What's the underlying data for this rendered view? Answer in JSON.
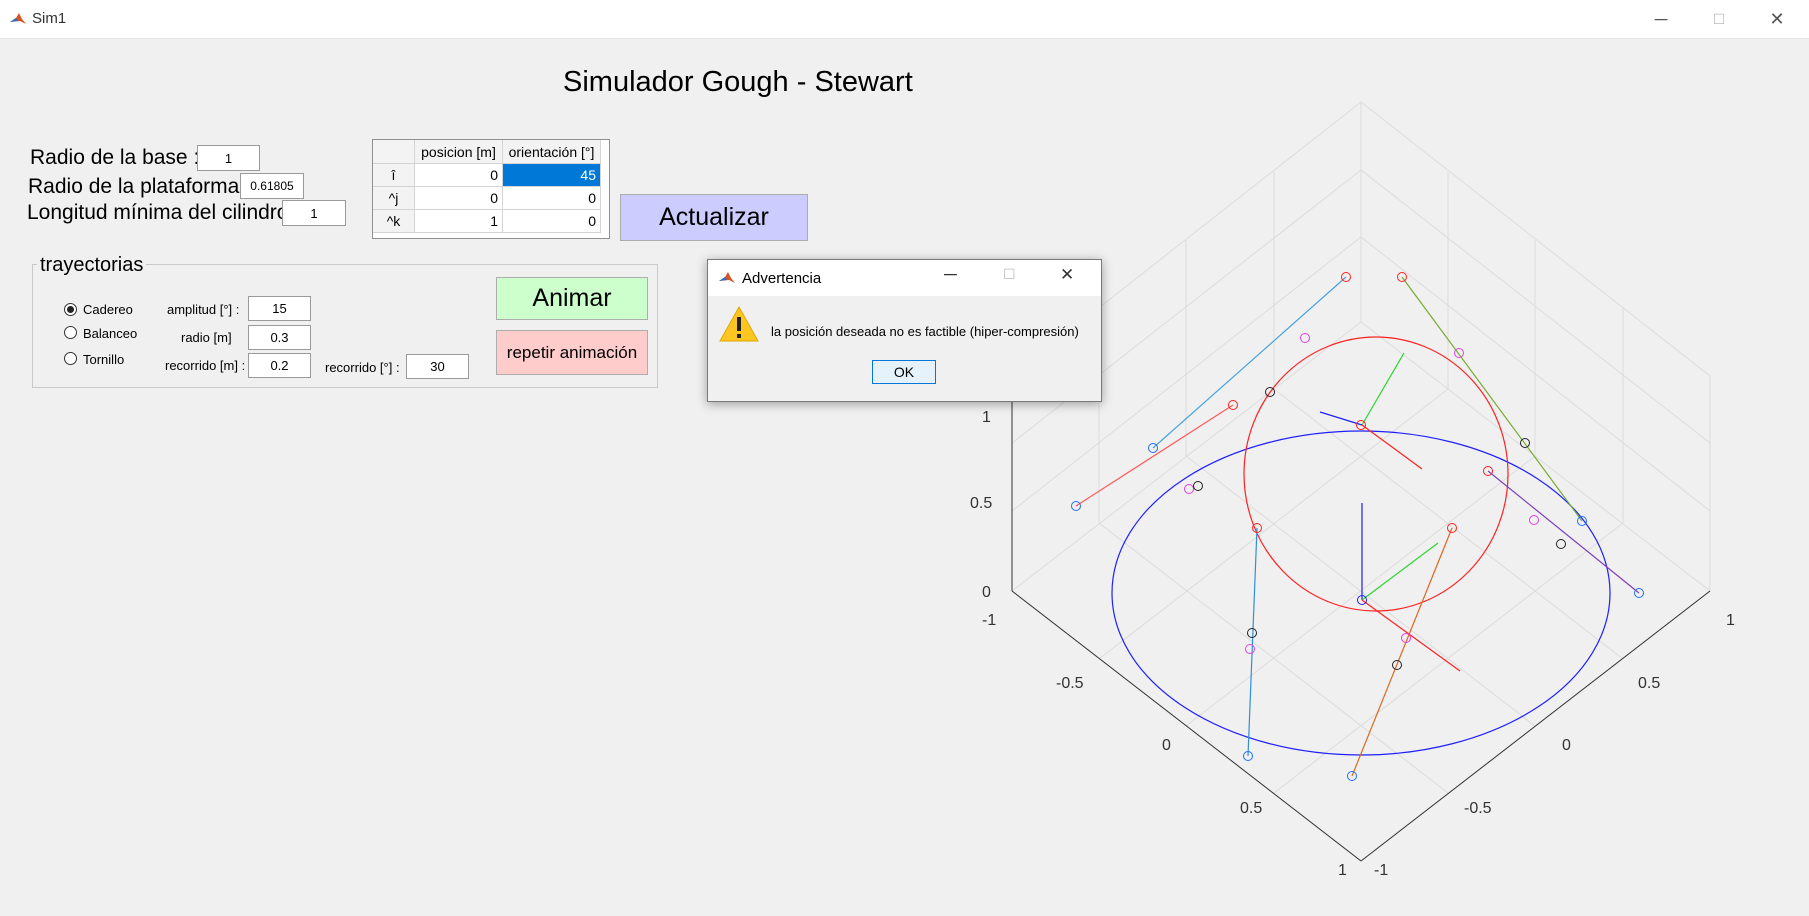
{
  "window": {
    "title": "Sim1",
    "minimize": "─",
    "maximize": "☐",
    "close": "✕"
  },
  "main_title": "Simulador Gough - Stewart",
  "params": {
    "radio_base_label": "Radio de la base :",
    "radio_base_value": "1",
    "radio_plataforma_label": "Radio de la plataforma :",
    "radio_plataforma_value": "0.61805",
    "longitud_label": "Longitud mínima del cilindro :",
    "longitud_value": "1"
  },
  "table": {
    "headers": [
      "posicion [m]",
      "orientación [°]"
    ],
    "rows": [
      {
        "label": "î",
        "pos": "0",
        "ori": "45"
      },
      {
        "label": "^j",
        "pos": "0",
        "ori": "0"
      },
      {
        "label": "^k",
        "pos": "1",
        "ori": "0"
      }
    ]
  },
  "buttons": {
    "actualizar": "Actualizar",
    "animar": "Animar",
    "repetir": "repetir animación"
  },
  "trayectorias": {
    "title": "trayectorias",
    "radios": [
      "Cadereo",
      "Balanceo",
      "Tornillo"
    ],
    "selected": "Cadereo",
    "amplitud_label": "amplitud [°] :",
    "amplitud_value": "15",
    "radio_label": "radio [m]",
    "radio_value": "0.3",
    "recorrido_m_label": "recorrido [m] :",
    "recorrido_m_value": "0.2",
    "recorrido_deg_label": "recorrido [°] :",
    "recorrido_deg_value": "30"
  },
  "dialog": {
    "title": "Advertencia",
    "message": "la posición deseada no es factible (hiper-compresión)",
    "ok": "OK"
  },
  "plot": {
    "z_ticks": [
      "1",
      "0.5",
      "0",
      "-1"
    ],
    "x_ticks": [
      "-0.5",
      "0",
      "0.5",
      "1"
    ],
    "y_ticks": [
      "1",
      "0.5",
      "0",
      "-0.5",
      "-1"
    ],
    "colors": {
      "base": "#1f1fff",
      "platform": "#ff2020",
      "grid": "#dcdcdc"
    }
  }
}
